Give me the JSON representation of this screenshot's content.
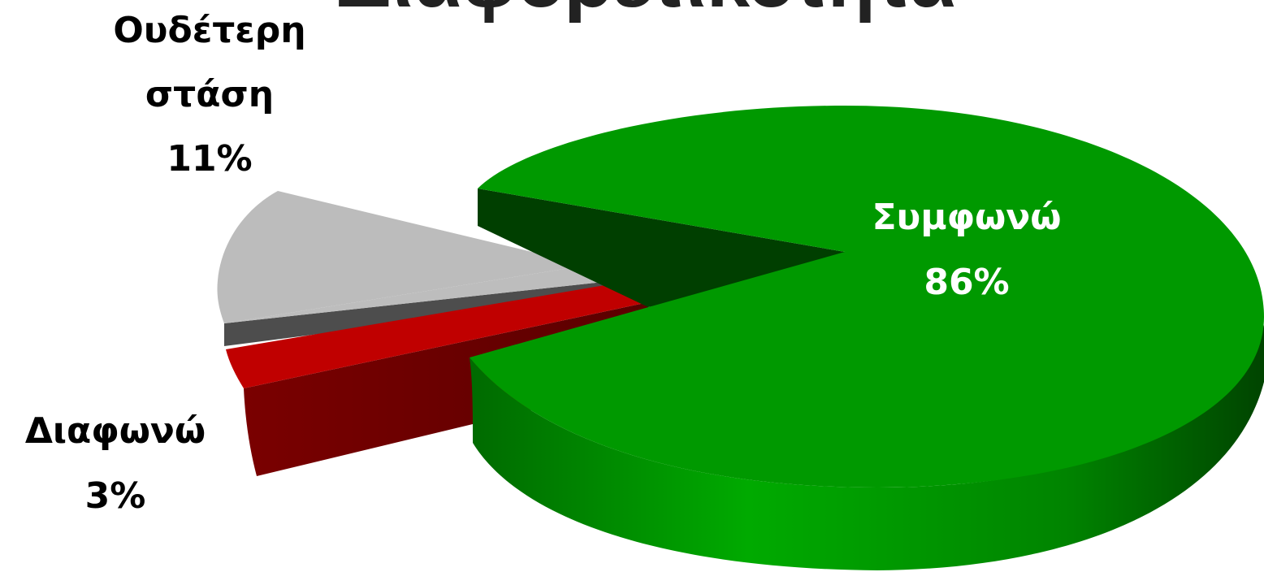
{
  "chart_data": {
    "type": "pie",
    "title": "Διαφορετικότητα",
    "slices": [
      {
        "label": "Συμφωνώ",
        "value": 86,
        "value_label": "86%",
        "color": "#009900"
      },
      {
        "label": "Διαφωνώ",
        "value": 3,
        "value_label": "3%",
        "color": "#c00000"
      },
      {
        "label": "Ουδέτερη στάση",
        "value": 11,
        "value_label": "11%",
        "color": "#bcbcbc"
      }
    ],
    "legend": "none",
    "style": "3d-exploded"
  }
}
